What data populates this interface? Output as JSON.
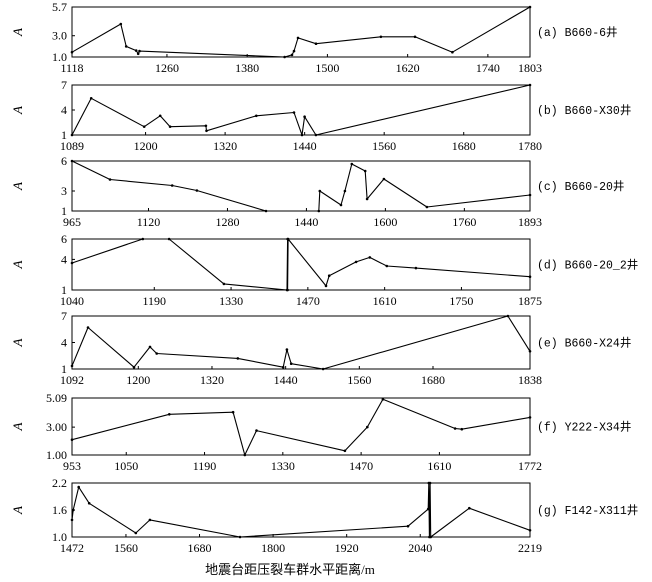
{
  "xlabel": "地震台距压裂车群水平距离/m",
  "colors": {
    "line": "#000000",
    "frame": "#000000",
    "background": "#ffffff"
  },
  "chart_data": [
    {
      "type": "line",
      "label": "(a) B660-6井",
      "ylabel": "A",
      "xlim": [
        1118,
        1803
      ],
      "ylim": [
        1.0,
        5.7
      ],
      "xticks": [
        "1118",
        "1260",
        "1380",
        "1500",
        "1620",
        "1740",
        "1803"
      ],
      "yticks": [
        "1.0",
        "3.0",
        "5.7"
      ],
      "grid": false,
      "series": [
        {
          "x": [
            1118,
            1191,
            1199,
            1214,
            1217,
            1219,
            1436,
            1447,
            1450,
            1456,
            1483,
            1580,
            1631,
            1687,
            1803
          ],
          "y": [
            1.45,
            4.1,
            2.0,
            1.6,
            1.3,
            1.55,
            1.0,
            1.2,
            1.55,
            2.8,
            2.25,
            2.9,
            2.9,
            1.45,
            5.7
          ]
        }
      ]
    },
    {
      "type": "line",
      "label": "(b) B660-X30井",
      "ylabel": "A",
      "xlim": [
        1089,
        1780
      ],
      "ylim": [
        1,
        7
      ],
      "xticks": [
        "1089",
        "1200",
        "1320",
        "1440",
        "1560",
        "1680",
        "1780"
      ],
      "yticks": [
        "1",
        "4",
        "7"
      ],
      "grid": false,
      "series": [
        {
          "x": [
            1089,
            1118,
            1198,
            1222,
            1237,
            1291,
            1292,
            1367,
            1424,
            1436,
            1440,
            1457,
            1780
          ],
          "y": [
            1.0,
            5.4,
            2.0,
            3.3,
            2.0,
            2.1,
            1.5,
            3.3,
            3.7,
            1.0,
            3.2,
            1.0,
            7.0
          ]
        }
      ]
    },
    {
      "type": "line",
      "label": "(c) B660-20井",
      "ylabel": "A",
      "xlim": [
        965,
        1893
      ],
      "ylim": [
        1,
        6
      ],
      "xticks": [
        "965",
        "1120",
        "1280",
        "1440",
        "1600",
        "1760",
        "1893"
      ],
      "yticks": [
        "1",
        "3",
        "6"
      ],
      "grid": false,
      "series": [
        {
          "x": [
            965,
            1042,
            1168,
            1218,
            1358,
            1465,
            1467,
            1510,
            1518,
            1532,
            1559,
            1563,
            1597,
            1684,
            1893
          ],
          "y": [
            6.0,
            4.15,
            3.55,
            3.05,
            1.0,
            1.0,
            3.0,
            1.6,
            3.0,
            5.7,
            5.0,
            2.2,
            4.2,
            1.4,
            2.6
          ]
        }
      ]
    },
    {
      "type": "line",
      "label": "(d) B660-20_2井",
      "ylabel": "A",
      "xlim": [
        1040,
        1875
      ],
      "ylim": [
        1,
        6
      ],
      "xticks": [
        "1040",
        "1190",
        "1330",
        "1470",
        "1610",
        "1750",
        "1875"
      ],
      "yticks": [
        "1",
        "4",
        "6"
      ],
      "grid": false,
      "series": [
        {
          "x": [
            1040,
            1169,
            1217,
            1317,
            1432,
            1433,
            1433,
            1434,
            1503,
            1509,
            1558,
            1583,
            1614,
            1667,
            1875
          ],
          "y": [
            3.65,
            6.0,
            6.0,
            1.6,
            1.0,
            6.0,
            1.0,
            6.0,
            1.4,
            2.4,
            3.75,
            4.2,
            3.35,
            3.15,
            2.3
          ]
        }
      ]
    },
    {
      "type": "line",
      "label": "(e) B660-X24井",
      "ylabel": "A",
      "xlim": [
        1092,
        1838
      ],
      "ylim": [
        1,
        7
      ],
      "xticks": [
        "1092",
        "1200",
        "1320",
        "1440",
        "1560",
        "1680",
        "1838"
      ],
      "yticks": [
        "1",
        "4",
        "7"
      ],
      "grid": false,
      "series": [
        {
          "x": [
            1092,
            1118,
            1193,
            1219,
            1230,
            1362,
            1436,
            1442,
            1449,
            1501,
            1802,
            1838
          ],
          "y": [
            1.35,
            5.7,
            1.2,
            3.5,
            2.75,
            2.2,
            1.2,
            3.2,
            1.6,
            1.0,
            7.0,
            3.0
          ]
        }
      ]
    },
    {
      "type": "line",
      "label": "(f) Y222-X34井",
      "ylabel": "A",
      "xlim": [
        953,
        1772
      ],
      "ylim": [
        1.0,
        5.09
      ],
      "xticks": [
        "953",
        "1050",
        "1190",
        "1330",
        "1470",
        "1610",
        "1772"
      ],
      "yticks": [
        "1.00",
        "3.00",
        "5.09"
      ],
      "grid": false,
      "series": [
        {
          "x": [
            953,
            1127,
            1241,
            1262,
            1283,
            1441,
            1481,
            1509,
            1638,
            1650,
            1772
          ],
          "y": [
            2.1,
            3.92,
            4.07,
            1.0,
            2.75,
            1.3,
            3.0,
            5.0,
            2.9,
            2.85,
            3.7
          ]
        }
      ]
    },
    {
      "type": "line",
      "label": "(g) F142-X311井",
      "ylabel": "A",
      "xlim": [
        1472,
        2219
      ],
      "ylim": [
        1.0,
        2.2
      ],
      "xticks": [
        "1472",
        "1560",
        "1680",
        "1800",
        "1920",
        "2040",
        "2219"
      ],
      "yticks": [
        "1.0",
        "1.6",
        "2.2"
      ],
      "grid": false,
      "series": [
        {
          "x": [
            1472,
            1474,
            1483,
            1500,
            1576,
            1599,
            1746,
            2020,
            2053,
            2054,
            2055,
            2056,
            2057,
            2120,
            2219
          ],
          "y": [
            1.38,
            1.6,
            2.11,
            1.75,
            1.09,
            1.38,
            1.0,
            1.24,
            1.62,
            2.2,
            1.0,
            2.2,
            1.0,
            1.64,
            1.15
          ]
        }
      ]
    }
  ]
}
